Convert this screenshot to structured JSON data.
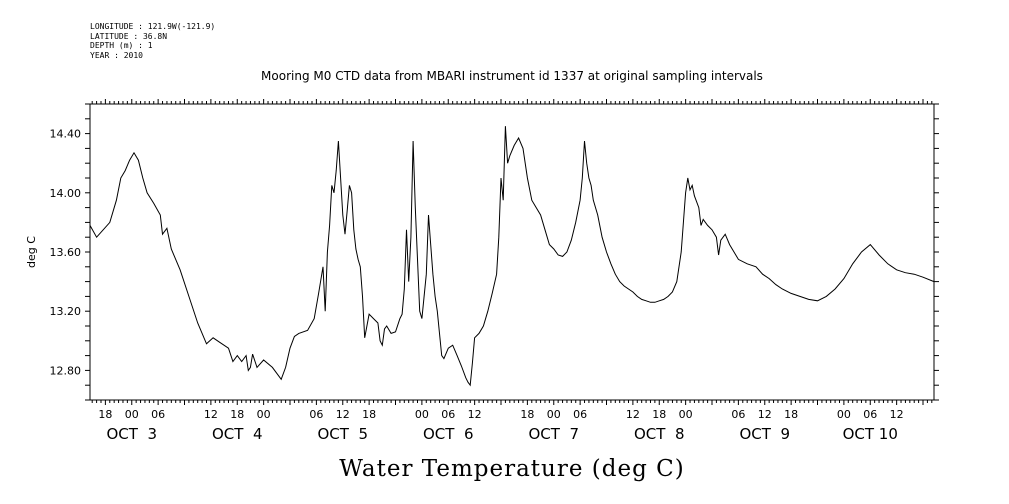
{
  "header": {
    "longitude": "LONGITUDE : 121.9W(-121.9)",
    "latitude": "LATITUDE : 36.8N",
    "depth": "DEPTH (m) : 1",
    "year": "YEAR : 2010"
  },
  "chart_data": {
    "type": "line",
    "title": "Mooring M0 CTD data from MBARI instrument id 1337 at original sampling intervals",
    "xlabel": "Water Temperature (deg C)",
    "ylabel": "deg C",
    "ylim": [
      12.6,
      14.6
    ],
    "y_ticks": [
      12.8,
      13.2,
      13.6,
      14.0,
      14.4
    ],
    "y_tick_labels": [
      "12.80",
      "13.20",
      "13.60",
      "14.00",
      "14.40"
    ],
    "x_axis": {
      "unit": "hours since Oct 2 2010 12:00",
      "xlim": [
        2.5,
        194.5
      ],
      "hour_ticks": [
        6,
        12,
        18,
        30,
        36,
        42,
        54,
        60,
        66,
        78,
        84,
        90,
        102,
        108,
        114,
        126,
        132,
        138,
        150,
        156,
        162,
        174,
        180,
        186
      ],
      "hour_tick_labels": [
        "18",
        "00",
        "06",
        "12",
        "18",
        "00",
        "06",
        "12",
        "18",
        "00",
        "06",
        "12",
        "18",
        "00",
        "06",
        "12",
        "18",
        "00",
        "06",
        "12",
        "18",
        "00",
        "06",
        "12"
      ],
      "date_labels": [
        {
          "hour": 12,
          "text": "OCT  3"
        },
        {
          "hour": 36,
          "text": "OCT  4"
        },
        {
          "hour": 60,
          "text": "OCT  5"
        },
        {
          "hour": 84,
          "text": "OCT  6"
        },
        {
          "hour": 108,
          "text": "OCT  7"
        },
        {
          "hour": 132,
          "text": "OCT  8"
        },
        {
          "hour": 156,
          "text": "OCT  9"
        },
        {
          "hour": 180,
          "text": "OCT 10"
        }
      ]
    },
    "series": [
      {
        "values": [
          [
            2.5,
            13.78
          ],
          [
            4,
            13.7
          ],
          [
            5.5,
            13.75
          ],
          [
            7,
            13.8
          ],
          [
            8.5,
            13.95
          ],
          [
            9.5,
            14.1
          ],
          [
            10.5,
            14.15
          ],
          [
            11.5,
            14.22
          ],
          [
            12.5,
            14.27
          ],
          [
            13.5,
            14.22
          ],
          [
            14.5,
            14.1
          ],
          [
            15.5,
            14.0
          ],
          [
            17,
            13.93
          ],
          [
            18.5,
            13.85
          ],
          [
            19,
            13.72
          ],
          [
            20,
            13.76
          ],
          [
            21,
            13.62
          ],
          [
            23,
            13.48
          ],
          [
            25,
            13.3
          ],
          [
            27,
            13.12
          ],
          [
            29,
            12.98
          ],
          [
            30.5,
            13.02
          ],
          [
            32,
            12.99
          ],
          [
            34,
            12.95
          ],
          [
            35,
            12.86
          ],
          [
            36,
            12.9
          ],
          [
            37,
            12.86
          ],
          [
            38,
            12.9
          ],
          [
            38.5,
            12.8
          ],
          [
            39,
            12.82
          ],
          [
            39.5,
            12.91
          ],
          [
            40.5,
            12.82
          ],
          [
            42,
            12.87
          ],
          [
            44,
            12.82
          ],
          [
            45.5,
            12.76
          ],
          [
            46,
            12.74
          ],
          [
            47,
            12.82
          ],
          [
            48,
            12.95
          ],
          [
            49,
            13.03
          ],
          [
            50,
            13.05
          ],
          [
            52,
            13.07
          ],
          [
            53.5,
            13.15
          ],
          [
            54.5,
            13.32
          ],
          [
            55.5,
            13.5
          ],
          [
            56,
            13.2
          ],
          [
            56.5,
            13.6
          ],
          [
            57,
            13.78
          ],
          [
            57.5,
            14.05
          ],
          [
            58,
            14.0
          ],
          [
            58.5,
            14.15
          ],
          [
            59,
            14.35
          ],
          [
            59.5,
            14.1
          ],
          [
            60,
            13.85
          ],
          [
            60.5,
            13.72
          ],
          [
            61,
            13.88
          ],
          [
            61.5,
            14.05
          ],
          [
            62,
            14.0
          ],
          [
            62.5,
            13.75
          ],
          [
            63,
            13.62
          ],
          [
            63.5,
            13.55
          ],
          [
            64,
            13.5
          ],
          [
            64.5,
            13.3
          ],
          [
            65,
            13.02
          ],
          [
            65.5,
            13.1
          ],
          [
            66,
            13.18
          ],
          [
            67,
            13.15
          ],
          [
            68,
            13.12
          ],
          [
            68.5,
            13.0
          ],
          [
            69,
            12.97
          ],
          [
            69.5,
            13.08
          ],
          [
            70,
            13.1
          ],
          [
            71,
            13.05
          ],
          [
            72,
            13.06
          ],
          [
            73,
            13.15
          ],
          [
            73.5,
            13.18
          ],
          [
            74,
            13.35
          ],
          [
            74.5,
            13.75
          ],
          [
            75,
            13.4
          ],
          [
            75.5,
            13.7
          ],
          [
            76,
            14.35
          ],
          [
            76.5,
            13.9
          ],
          [
            77,
            13.55
          ],
          [
            77.5,
            13.2
          ],
          [
            78,
            13.15
          ],
          [
            78.5,
            13.3
          ],
          [
            79,
            13.45
          ],
          [
            79.5,
            13.85
          ],
          [
            80,
            13.65
          ],
          [
            80.5,
            13.45
          ],
          [
            81,
            13.3
          ],
          [
            81.5,
            13.2
          ],
          [
            82,
            13.05
          ],
          [
            82.5,
            12.9
          ],
          [
            83,
            12.88
          ],
          [
            84,
            12.95
          ],
          [
            85,
            12.97
          ],
          [
            86,
            12.9
          ],
          [
            87,
            12.83
          ],
          [
            88,
            12.75
          ],
          [
            88.5,
            12.72
          ],
          [
            89,
            12.7
          ],
          [
            89.5,
            12.85
          ],
          [
            90,
            13.02
          ],
          [
            91,
            13.05
          ],
          [
            92,
            13.1
          ],
          [
            93,
            13.2
          ],
          [
            94,
            13.32
          ],
          [
            95,
            13.45
          ],
          [
            95.5,
            13.7
          ],
          [
            96,
            14.1
          ],
          [
            96.5,
            13.95
          ],
          [
            97,
            14.45
          ],
          [
            97.5,
            14.2
          ],
          [
            98,
            14.25
          ],
          [
            99,
            14.32
          ],
          [
            100,
            14.37
          ],
          [
            101,
            14.3
          ],
          [
            102,
            14.1
          ],
          [
            103,
            13.95
          ],
          [
            104,
            13.9
          ],
          [
            105,
            13.85
          ],
          [
            106,
            13.75
          ],
          [
            107,
            13.65
          ],
          [
            108,
            13.62
          ],
          [
            109,
            13.58
          ],
          [
            110,
            13.57
          ],
          [
            111,
            13.6
          ],
          [
            112,
            13.68
          ],
          [
            113,
            13.8
          ],
          [
            114,
            13.95
          ],
          [
            114.5,
            14.1
          ],
          [
            115,
            14.35
          ],
          [
            115.5,
            14.2
          ],
          [
            116,
            14.1
          ],
          [
            116.5,
            14.05
          ],
          [
            117,
            13.95
          ],
          [
            118,
            13.85
          ],
          [
            119,
            13.7
          ],
          [
            120,
            13.6
          ],
          [
            121,
            13.52
          ],
          [
            122,
            13.45
          ],
          [
            123,
            13.4
          ],
          [
            124,
            13.37
          ],
          [
            125,
            13.35
          ],
          [
            126,
            13.33
          ],
          [
            127,
            13.3
          ],
          [
            128,
            13.28
          ],
          [
            129,
            13.27
          ],
          [
            130,
            13.26
          ],
          [
            131,
            13.26
          ],
          [
            132,
            13.27
          ],
          [
            133,
            13.28
          ],
          [
            134,
            13.3
          ],
          [
            135,
            13.33
          ],
          [
            136,
            13.4
          ],
          [
            137,
            13.6
          ],
          [
            137.5,
            13.8
          ],
          [
            138,
            14.0
          ],
          [
            138.5,
            14.1
          ],
          [
            139,
            14.02
          ],
          [
            139.5,
            14.05
          ],
          [
            140,
            13.98
          ],
          [
            141,
            13.9
          ],
          [
            141.5,
            13.78
          ],
          [
            142,
            13.82
          ],
          [
            143,
            13.78
          ],
          [
            144,
            13.75
          ],
          [
            145,
            13.7
          ],
          [
            145.5,
            13.58
          ],
          [
            146,
            13.68
          ],
          [
            147,
            13.72
          ],
          [
            148,
            13.65
          ],
          [
            149,
            13.6
          ],
          [
            150,
            13.55
          ],
          [
            152,
            13.52
          ],
          [
            154,
            13.5
          ],
          [
            155.5,
            13.45
          ],
          [
            157,
            13.42
          ],
          [
            158.5,
            13.38
          ],
          [
            160,
            13.35
          ],
          [
            162,
            13.32
          ],
          [
            164,
            13.3
          ],
          [
            166,
            13.28
          ],
          [
            168,
            13.27
          ],
          [
            170,
            13.3
          ],
          [
            172,
            13.35
          ],
          [
            174,
            13.42
          ],
          [
            176,
            13.52
          ],
          [
            178,
            13.6
          ],
          [
            180,
            13.65
          ],
          [
            182,
            13.58
          ],
          [
            184,
            13.52
          ],
          [
            186,
            13.48
          ],
          [
            188,
            13.46
          ],
          [
            190,
            13.45
          ],
          [
            192,
            13.43
          ],
          [
            194.5,
            13.4
          ]
        ]
      }
    ]
  }
}
